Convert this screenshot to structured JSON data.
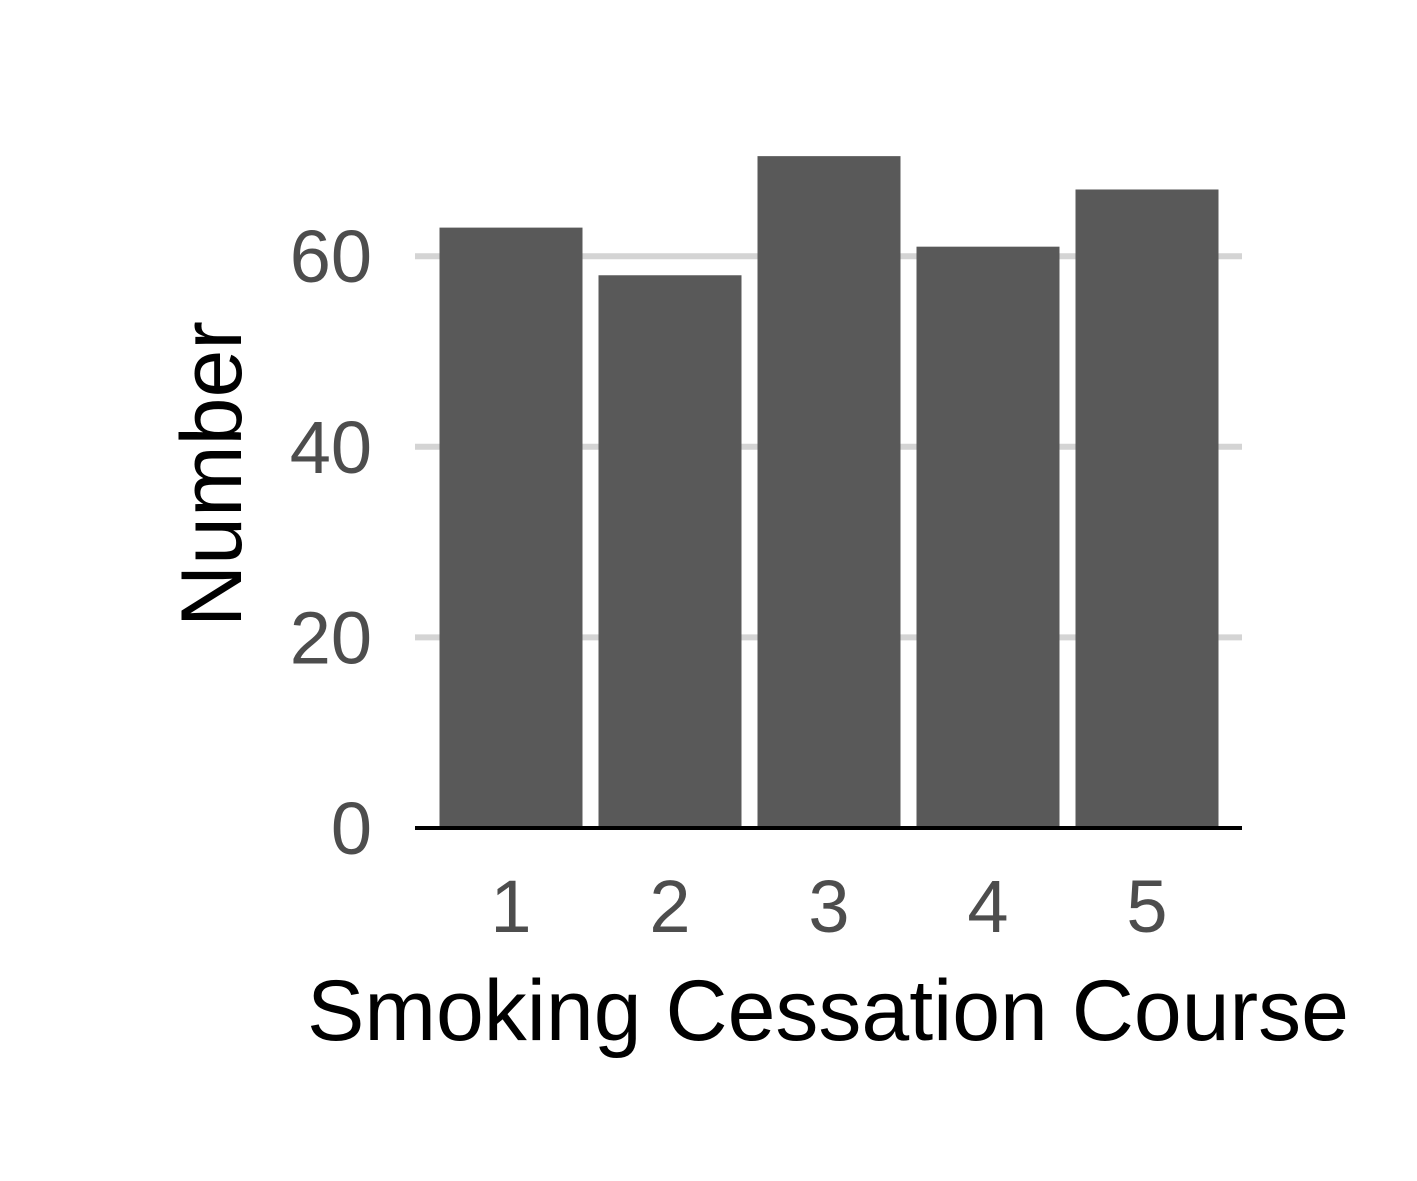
{
  "chart_data": {
    "type": "bar",
    "title": "",
    "xlabel": "Smoking Cessation Course",
    "ylabel": "Number",
    "categories": [
      "1",
      "2",
      "3",
      "4",
      "5"
    ],
    "values": [
      63,
      58,
      70.5,
      61,
      67
    ],
    "ylim": [
      0,
      72
    ],
    "yticks": [
      0,
      20,
      40,
      60
    ],
    "grid": "horizontal",
    "bar_color": "#595959",
    "grid_color": "#d4d4d4",
    "tick_label_color": "#4d4d4d",
    "axis_title_color": "#000000"
  }
}
